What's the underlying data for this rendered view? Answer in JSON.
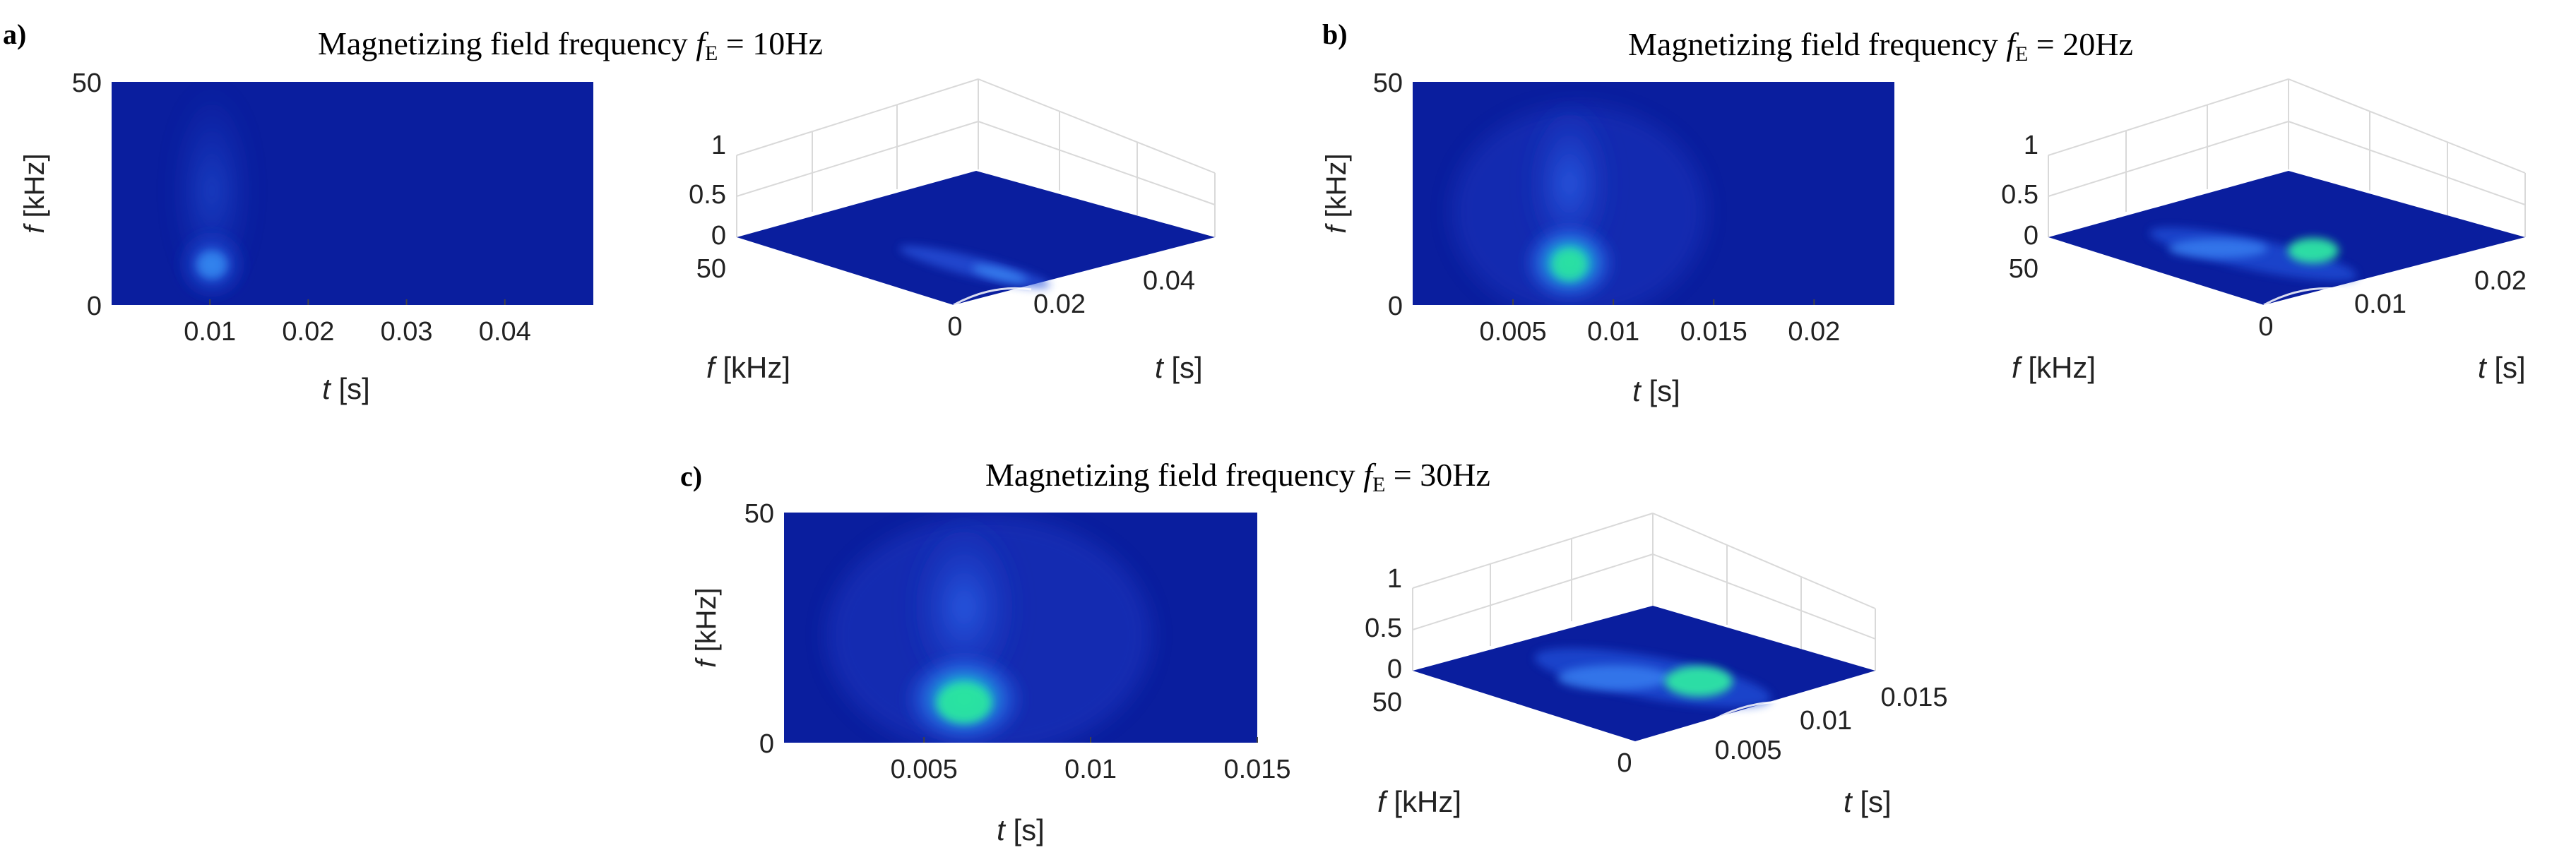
{
  "figure": {
    "colors": {
      "background": "#ffffff",
      "map_low": "#0a1e9e",
      "map_mid": "#2a60f0",
      "map_high": "#27e3a4",
      "grid": "#d9d9d9",
      "text": "#222222"
    }
  },
  "chart_data": [
    {
      "id": "a",
      "panel_label": "a)",
      "title": {
        "prefix": "Magnetizing field frequency ",
        "symbol": "f",
        "subscript": "E",
        "suffix": " = 10Hz"
      },
      "type": "heatmap",
      "description_quantity": "normalized spectrogram amplitude",
      "heatmap": {
        "xlabel": {
          "symbol": "t",
          "unit": "[s]"
        },
        "ylabel": {
          "symbol": "f",
          "unit": "[kHz]"
        },
        "xlim": [
          0,
          0.049
        ],
        "ylim": [
          0,
          50
        ],
        "xticks": [
          0.01,
          0.02,
          0.03,
          0.04
        ],
        "xtick_labels": [
          "0.01",
          "0.02",
          "0.03",
          "0.04"
        ],
        "yticks": [
          0,
          50
        ],
        "ytick_labels": [
          "0",
          "50"
        ],
        "peak": {
          "t": 0.0105,
          "f": 9,
          "amplitude": 0.35
        }
      },
      "surface": {
        "type": "surface3d",
        "xlabel": {
          "symbol": "t",
          "unit": "[s]"
        },
        "ylabel": {
          "symbol": "f",
          "unit": "[kHz]"
        },
        "zlim": [
          0,
          1
        ],
        "zticks": [
          0,
          0.5,
          1
        ],
        "ztick_labels": [
          "0",
          "0.5",
          "1"
        ],
        "xticks": [
          0,
          0.02,
          0.04
        ],
        "xtick_labels": [
          "0",
          "0.02",
          "0.04"
        ],
        "ytick_labels": [
          "50"
        ],
        "peak_amplitude": 0.05
      }
    },
    {
      "id": "b",
      "panel_label": "b)",
      "title": {
        "prefix": "Magnetizing field frequency ",
        "symbol": "f",
        "subscript": "E",
        "suffix": " = 20Hz"
      },
      "type": "heatmap",
      "description_quantity": "normalized spectrogram amplitude",
      "heatmap": {
        "xlabel": {
          "symbol": "t",
          "unit": "[s]"
        },
        "ylabel": {
          "symbol": "f",
          "unit": "[kHz]"
        },
        "xlim": [
          0,
          0.024
        ],
        "ylim": [
          0,
          50
        ],
        "xticks": [
          0.005,
          0.01,
          0.015,
          0.02
        ],
        "xtick_labels": [
          "0.005",
          "0.01",
          "0.015",
          "0.02"
        ],
        "yticks": [
          0,
          50
        ],
        "ytick_labels": [
          "0",
          "50"
        ],
        "peak": {
          "t": 0.0079,
          "f": 9,
          "amplitude": 0.65
        }
      },
      "surface": {
        "type": "surface3d",
        "xlabel": {
          "symbol": "t",
          "unit": "[s]"
        },
        "ylabel": {
          "symbol": "f",
          "unit": "[kHz]"
        },
        "zlim": [
          0,
          1
        ],
        "zticks": [
          0,
          0.5,
          1
        ],
        "ztick_labels": [
          "0",
          "0.5",
          "1"
        ],
        "xticks": [
          0,
          0.01,
          0.02
        ],
        "xtick_labels": [
          "0",
          "0.01",
          "0.02"
        ],
        "ytick_labels": [
          "50"
        ],
        "peak_amplitude": 0.6
      }
    },
    {
      "id": "c",
      "panel_label": "c)",
      "title": {
        "prefix": "Magnetizing field frequency ",
        "symbol": "f",
        "subscript": "E",
        "suffix": " = 30Hz"
      },
      "type": "heatmap",
      "description_quantity": "normalized spectrogram amplitude",
      "heatmap": {
        "xlabel": {
          "symbol": "t",
          "unit": "[s]"
        },
        "ylabel": {
          "symbol": "f",
          "unit": "[kHz]"
        },
        "xlim": [
          0.0008,
          0.015
        ],
        "ylim": [
          0,
          50
        ],
        "xticks": [
          0.005,
          0.01,
          0.015
        ],
        "xtick_labels": [
          "0.005",
          "0.01",
          "0.015"
        ],
        "yticks": [
          0,
          50
        ],
        "ytick_labels": [
          "0",
          "50"
        ],
        "peak": {
          "t": 0.0063,
          "f": 8,
          "amplitude": 0.75
        }
      },
      "surface": {
        "type": "surface3d",
        "xlabel": {
          "symbol": "t",
          "unit": "[s]"
        },
        "ylabel": {
          "symbol": "f",
          "unit": "[kHz]"
        },
        "zlim": [
          0,
          1
        ],
        "zticks": [
          0,
          0.5,
          1
        ],
        "ztick_labels": [
          "0",
          "0.5",
          "1"
        ],
        "xticks": [
          0.005,
          0.01,
          0.015
        ],
        "xtick_labels": [
          "0.005",
          "0.01",
          "0.015"
        ],
        "bottom_tick_label": "0",
        "ytick_labels": [
          "50"
        ],
        "peak_amplitude": 0.72
      }
    }
  ]
}
